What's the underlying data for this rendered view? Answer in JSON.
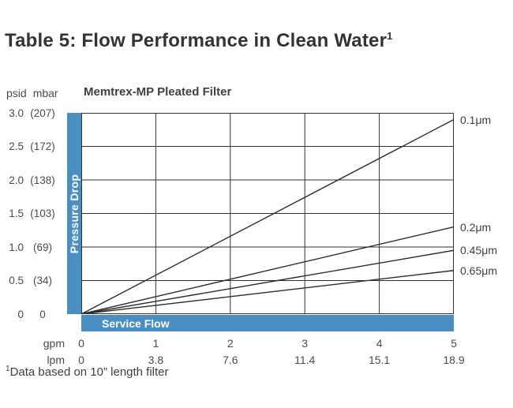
{
  "page": {
    "title": "Table 5: Flow Performance in Clean Water",
    "title_superscript": "1",
    "footnote_superscript": "1",
    "footnote_text": "Data based on 10” length filter"
  },
  "chart_data": {
    "type": "line",
    "title": "Memtrex-MP Pleated Filter",
    "grid": true,
    "colors": {
      "accent_blue": "#4a8ec2",
      "grid_line": "#333333",
      "series_line": "#2b2b2b",
      "text": "#4a4a4a"
    },
    "y_axis": {
      "label": "Pressure Drop",
      "units_header": [
        "psid",
        "mbar"
      ],
      "range_psid": [
        0,
        3.0
      ],
      "ticks": [
        {
          "psid": "3.0",
          "mbar": "(207)",
          "value": 3.0
        },
        {
          "psid": "2.5",
          "mbar": "(172)",
          "value": 2.5
        },
        {
          "psid": "2.0",
          "mbar": "(138)",
          "value": 2.0
        },
        {
          "psid": "1.5",
          "mbar": "(103)",
          "value": 1.5
        },
        {
          "psid": "1.0",
          "mbar": "(69)",
          "value": 1.0
        },
        {
          "psid": "0.5",
          "mbar": "(34)",
          "value": 0.5
        },
        {
          "psid": "0",
          "mbar": "0",
          "value": 0
        }
      ]
    },
    "x_axis": {
      "label": "Service Flow",
      "range_gpm": [
        0,
        5
      ],
      "unit_rows": [
        {
          "name": "gpm",
          "ticks": [
            "0",
            "1",
            "2",
            "3",
            "4",
            "5"
          ]
        },
        {
          "name": "lpm",
          "ticks": [
            "0",
            "3.8",
            "7.6",
            "11.4",
            "15.1",
            "18.9"
          ]
        }
      ]
    },
    "series": [
      {
        "name": "0.1μm",
        "x": [
          0,
          5
        ],
        "y": [
          0,
          2.9
        ]
      },
      {
        "name": "0.2μm",
        "x": [
          0,
          5
        ],
        "y": [
          0,
          1.3
        ]
      },
      {
        "name": "0.45μm",
        "x": [
          0,
          5
        ],
        "y": [
          0,
          0.95
        ]
      },
      {
        "name": "0.65μm",
        "x": [
          0,
          5
        ],
        "y": [
          0,
          0.65
        ]
      }
    ]
  }
}
